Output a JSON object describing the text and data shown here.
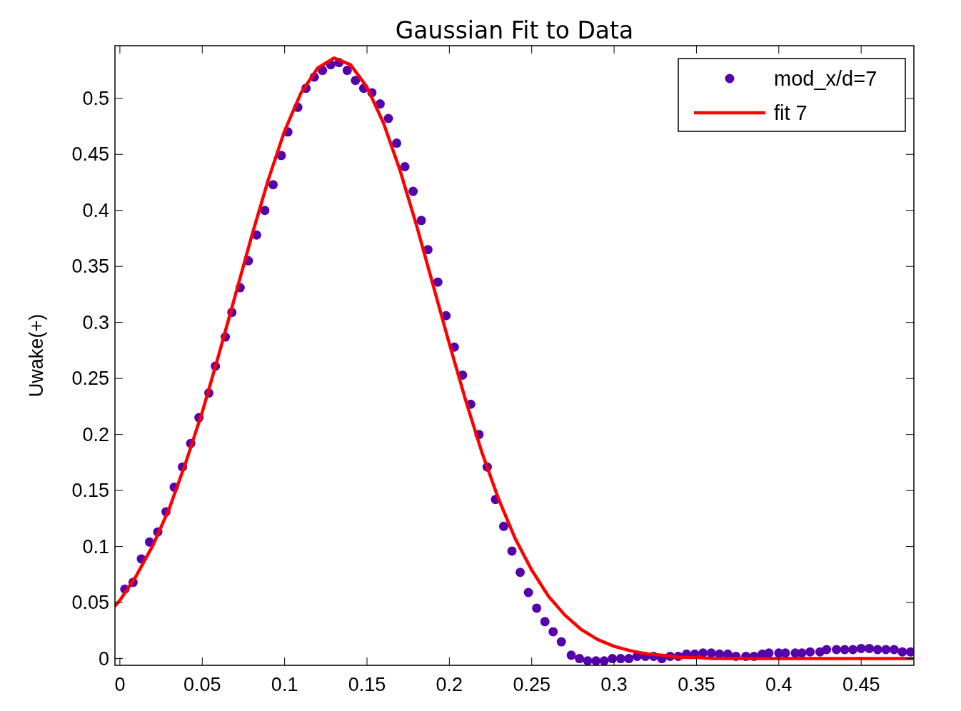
{
  "chart_data": {
    "type": "scatter",
    "title": "Gaussian Fit to Data",
    "ylabel": "Uwake(+)",
    "xlim": [
      -0.003,
      0.482
    ],
    "ylim": [
      -0.006,
      0.547
    ],
    "xticks": [
      0,
      0.05,
      0.1,
      0.15,
      0.2,
      0.25,
      0.3,
      0.35,
      0.4,
      0.45
    ],
    "yticks": [
      0,
      0.05,
      0.1,
      0.15,
      0.2,
      0.25,
      0.3,
      0.35,
      0.4,
      0.45,
      0.5
    ],
    "grid": false,
    "legend": "top right",
    "series": [
      {
        "name": "mod_x/d=7",
        "marker": "circle",
        "color": "#5500aa",
        "x": [
          0.003,
          0.008,
          0.013,
          0.018,
          0.023,
          0.028,
          0.033,
          0.038,
          0.043,
          0.048,
          0.054,
          0.058,
          0.064,
          0.068,
          0.073,
          0.078,
          0.083,
          0.088,
          0.093,
          0.098,
          0.102,
          0.108,
          0.113,
          0.118,
          0.123,
          0.128,
          0.133,
          0.138,
          0.143,
          0.148,
          0.153,
          0.158,
          0.163,
          0.168,
          0.173,
          0.178,
          0.183,
          0.187,
          0.193,
          0.198,
          0.203,
          0.208,
          0.213,
          0.218,
          0.223,
          0.228,
          0.233,
          0.238,
          0.243,
          0.248,
          0.253,
          0.258,
          0.263,
          0.268,
          0.274,
          0.279,
          0.284,
          0.289,
          0.294,
          0.299,
          0.304,
          0.309,
          0.314,
          0.319,
          0.324,
          0.329,
          0.334,
          0.339,
          0.344,
          0.349,
          0.354,
          0.359,
          0.364,
          0.369,
          0.374,
          0.38,
          0.385,
          0.39,
          0.394,
          0.4,
          0.404,
          0.41,
          0.414,
          0.419,
          0.425,
          0.429,
          0.435,
          0.44,
          0.445,
          0.45,
          0.455,
          0.46,
          0.465,
          0.47,
          0.475,
          0.48
        ],
        "values": [
          0.062,
          0.068,
          0.089,
          0.104,
          0.113,
          0.131,
          0.153,
          0.171,
          0.192,
          0.215,
          0.237,
          0.261,
          0.287,
          0.309,
          0.331,
          0.355,
          0.378,
          0.4,
          0.423,
          0.449,
          0.47,
          0.492,
          0.509,
          0.519,
          0.525,
          0.53,
          0.532,
          0.525,
          0.516,
          0.509,
          0.505,
          0.495,
          0.482,
          0.46,
          0.439,
          0.417,
          0.391,
          0.365,
          0.336,
          0.306,
          0.278,
          0.253,
          0.227,
          0.2,
          0.171,
          0.142,
          0.118,
          0.096,
          0.077,
          0.059,
          0.045,
          0.033,
          0.024,
          0.015,
          0.003,
          0,
          -0.002,
          -0.002,
          -0.002,
          0,
          0,
          0,
          0.002,
          0.002,
          0.002,
          0,
          0.002,
          0.002,
          0.004,
          0.004,
          0.005,
          0.005,
          0.004,
          0.004,
          0.002,
          0.002,
          0.002,
          0.004,
          0.005,
          0.005,
          0.005,
          0.005,
          0.005,
          0.006,
          0.006,
          0.008,
          0.008,
          0.008,
          0.008,
          0.009,
          0.009,
          0.008,
          0.008,
          0.008,
          0.006,
          0.006
        ]
      },
      {
        "name": "fit 7",
        "type": "line",
        "line_style": "solid",
        "marker": "none",
        "color": "#ff0000",
        "x": [
          -0.003,
          0,
          0.01,
          0.02,
          0.03,
          0.04,
          0.05,
          0.06,
          0.07,
          0.08,
          0.09,
          0.1,
          0.11,
          0.12,
          0.13,
          0.14,
          0.15,
          0.16,
          0.17,
          0.18,
          0.19,
          0.2,
          0.21,
          0.22,
          0.23,
          0.24,
          0.25,
          0.26,
          0.27,
          0.28,
          0.29,
          0.3,
          0.31,
          0.32,
          0.33,
          0.34,
          0.35,
          0.36,
          0.4,
          0.44,
          0.482
        ],
        "values": [
          0.047,
          0.052,
          0.074,
          0.101,
          0.134,
          0.175,
          0.22,
          0.271,
          0.324,
          0.377,
          0.427,
          0.471,
          0.505,
          0.527,
          0.536,
          0.53,
          0.51,
          0.478,
          0.436,
          0.387,
          0.334,
          0.281,
          0.23,
          0.183,
          0.142,
          0.107,
          0.079,
          0.056,
          0.039,
          0.026,
          0.017,
          0.011,
          0.007,
          0.004,
          0.003,
          0.001,
          0.001,
          0,
          0,
          0,
          0
        ]
      }
    ]
  }
}
